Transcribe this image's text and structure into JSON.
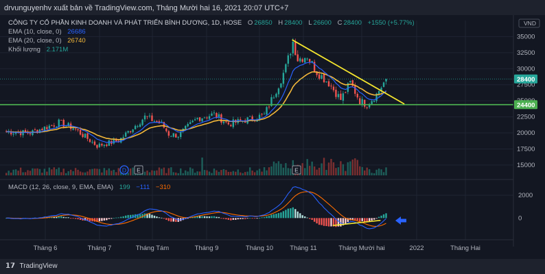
{
  "header": {
    "publisher_line": "drvunguyenhv xuất bản về TradingView.com, Tháng Mười hai 16, 2021 20:07 UTC+7"
  },
  "legend": {
    "symbol": "CÔNG TY CỔ PHẦN KINH DOANH VÀ PHÁT TRIỂN BÌNH DƯƠNG, 1D, HOSE",
    "open_label": "O",
    "open": "26850",
    "high_label": "H",
    "high": "28400",
    "low_label": "L",
    "low": "26600",
    "close_label": "C",
    "close": "28400",
    "change": "+1550 (+5.77%)",
    "ema10_label": "EMA (10, close, 0)",
    "ema10_value": "26686",
    "ema20_label": "EMA (20, close, 0)",
    "ema20_value": "26740",
    "volume_label": "Khối lượng",
    "volume_value": "2.171M",
    "macd_label": "MACD (12, 26, close, 9, EMA, EMA)",
    "macd_hist": "199",
    "macd_line": "−111",
    "macd_signal": "−310"
  },
  "price_axis": {
    "currency": "VND",
    "ticks": [
      "35000",
      "32500",
      "30000",
      "27500",
      "25000",
      "22500",
      "20000",
      "17500",
      "15000"
    ],
    "last_price_label": "28400",
    "support_label": "24400"
  },
  "macd_axis": {
    "ticks": [
      "2000",
      "0"
    ]
  },
  "time_axis": {
    "labels": [
      "Tháng 6",
      "Tháng 7",
      "Tháng Tám",
      "Tháng 9",
      "Tháng 10",
      "Tháng 11",
      "Tháng Mười hai",
      "2022",
      "Tháng Hai"
    ]
  },
  "markers": {
    "dividend": "D",
    "earnings_1": "E",
    "earnings_2": "E"
  },
  "footer": {
    "brand": "TradingView"
  },
  "colors": {
    "up": "#26a69a",
    "down": "#ef5350",
    "ema10": "#2962ff",
    "ema20": "#f5b93a",
    "trendline": "#f5e62e",
    "support": "#4caf50",
    "background": "#131722"
  },
  "chart_data": {
    "type": "candlestick",
    "ylim": [
      13500,
      36000
    ],
    "macd_ylim": [
      -1300,
      2900
    ],
    "close_path_anchors": [
      [
        0,
        20200
      ],
      [
        10,
        20000
      ],
      [
        22,
        21600
      ],
      [
        28,
        20800
      ],
      [
        38,
        18000
      ],
      [
        47,
        18800
      ],
      [
        58,
        22500
      ],
      [
        65,
        21400
      ],
      [
        68,
        19800
      ],
      [
        72,
        19600
      ],
      [
        80,
        22300
      ],
      [
        87,
        22900
      ],
      [
        93,
        21400
      ],
      [
        100,
        22000
      ],
      [
        108,
        22800
      ],
      [
        114,
        27500
      ],
      [
        117,
        30200
      ],
      [
        120,
        34200
      ],
      [
        122,
        31500
      ],
      [
        126,
        32000
      ],
      [
        130,
        29500
      ],
      [
        135,
        27800
      ],
      [
        140,
        25200
      ],
      [
        144,
        27800
      ],
      [
        148,
        25000
      ],
      [
        151,
        24400
      ],
      [
        155,
        26000
      ],
      [
        159,
        28400
      ]
    ],
    "support_level": 24400,
    "trendline": {
      "from": [
        120,
        34500
      ],
      "to": [
        167,
        24500
      ]
    },
    "macd_lower_trendline": [
      [
        137,
        -650
      ],
      [
        157,
        -200
      ]
    ]
  }
}
